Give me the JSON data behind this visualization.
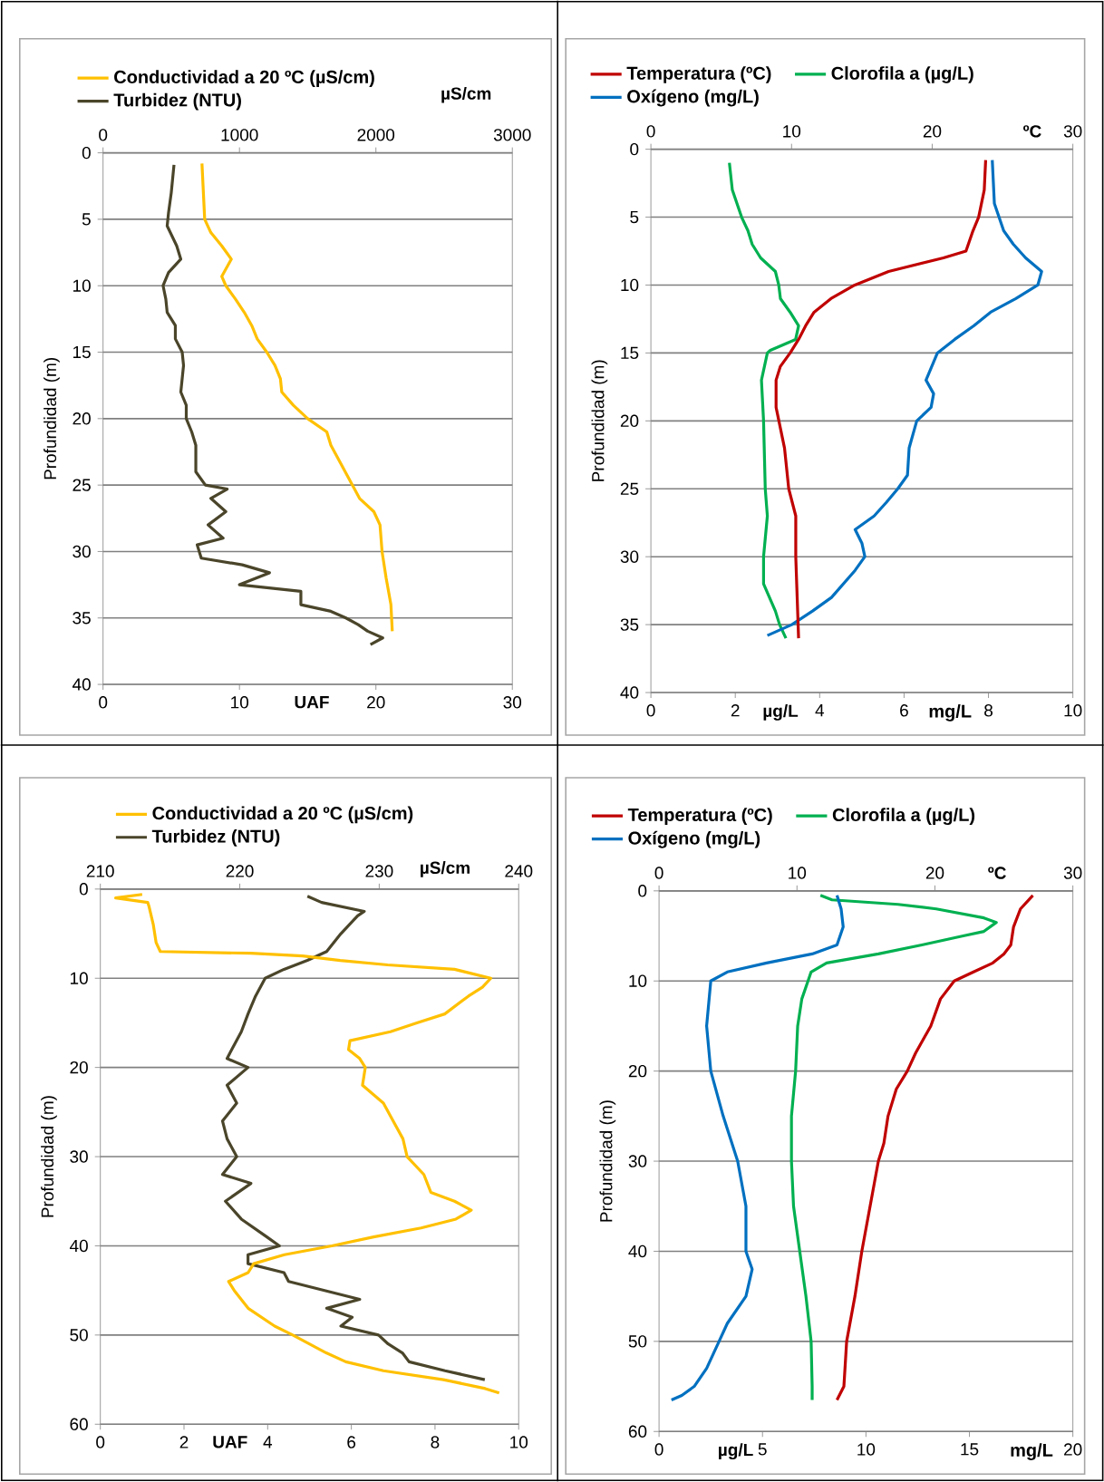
{
  "chart_data": [
    {
      "type": "line",
      "xlabel": "UAF",
      "x2label": "µS/cm",
      "ylabel": "Profundidad (m)",
      "xlim": [
        0,
        30
      ],
      "xticks": [
        0,
        10,
        20,
        30
      ],
      "x2lim": [
        0,
        3000
      ],
      "x2ticks": [
        0,
        1000,
        2000,
        3000
      ],
      "ylim": [
        40,
        0
      ],
      "yticks": [
        0,
        5,
        10,
        15,
        20,
        25,
        30,
        35,
        40
      ],
      "grid": "y",
      "legend": "top",
      "series": [
        {
          "name": "Conductividad  a  20 ºC (µS/cm)",
          "color": "#ffc000",
          "axis": "x2",
          "x": [
            725,
            745,
            790,
            870,
            940,
            870,
            900,
            970,
            1035,
            1090,
            1130,
            1200,
            1260,
            1300,
            1310,
            1395,
            1500,
            1640,
            1670,
            1775,
            1880,
            1985,
            2030,
            2045,
            2075,
            2110,
            2120
          ],
          "values": [
            0.8,
            5,
            6,
            7,
            8,
            9.3,
            10,
            11,
            12,
            13,
            14,
            15,
            16,
            17,
            18,
            19,
            20,
            21,
            22,
            24,
            26,
            27,
            28,
            30,
            32,
            34,
            36
          ]
        },
        {
          "name": "Turbidez (NTU)",
          "color": "#4a452a",
          "x": [
            5.2,
            5.0,
            4.8,
            4.7,
            5.4,
            5.7,
            4.8,
            4.4,
            4.6,
            4.7,
            5.3,
            5.3,
            5.8,
            5.9,
            5.7,
            6.1,
            6.1,
            6.5,
            6.8,
            6.8,
            7.5,
            9.1,
            7.9,
            9.0,
            7.7,
            8.8,
            6.9,
            7.2,
            10.2,
            12.2,
            10.0,
            14.5,
            14.5,
            16.7,
            17.8,
            18.7,
            19.4,
            20.5,
            19.6
          ],
          "values": [
            0.9,
            3,
            4.5,
            5.5,
            7,
            8,
            9,
            10,
            11,
            12,
            13,
            14,
            15,
            16,
            18,
            19,
            20,
            21,
            22,
            24,
            25,
            25.3,
            26,
            27,
            28,
            29,
            29.5,
            30.5,
            31,
            31.6,
            32.5,
            33,
            34,
            34.5,
            35,
            35.5,
            36,
            36.5,
            37
          ]
        }
      ]
    },
    {
      "type": "line",
      "xlabel": "µg/L",
      "x2label": "ºC",
      "ylabel": "Profundidad (m)",
      "xlim": [
        0,
        10
      ],
      "xticks": [
        0,
        2,
        4,
        6,
        8,
        10
      ],
      "x2lim": [
        0,
        30
      ],
      "x2ticks": [
        0,
        10,
        20,
        30
      ],
      "ylim": [
        40,
        0
      ],
      "yticks": [
        0,
        5,
        10,
        15,
        20,
        25,
        30,
        35,
        40
      ],
      "grid": "y",
      "legend": "top",
      "annotations": [
        "mg/L"
      ],
      "series": [
        {
          "name": "Temperatura (ºC)",
          "color": "#c00000",
          "axis": "x2",
          "x": [
            23.8,
            23.7,
            23.3,
            22.9,
            22.4,
            20.8,
            16.9,
            14.5,
            12.8,
            11.6,
            11.0,
            10.5,
            9.9,
            9.2,
            8.9,
            8.9,
            9.5,
            9.8,
            10.3,
            10.3,
            10.4,
            10.5
          ],
          "values": [
            0.8,
            3,
            5,
            6,
            7.5,
            8,
            9,
            10,
            11,
            12,
            13,
            14,
            15,
            16,
            17,
            19,
            22,
            25,
            27,
            30,
            33,
            36
          ]
        },
        {
          "name": "Clorofila a (µg/L)",
          "color": "#00b050",
          "x": [
            1.86,
            1.93,
            2.15,
            2.3,
            2.4,
            2.6,
            2.95,
            3.03,
            3.07,
            3.3,
            3.5,
            3.43,
            2.83,
            2.76,
            2.62,
            2.67,
            2.71,
            2.76,
            2.67,
            2.67,
            2.95,
            3.05,
            3.2
          ],
          "values": [
            1,
            3,
            5,
            6,
            7,
            8,
            9,
            10,
            11,
            12,
            13,
            14,
            14.8,
            15,
            17,
            20,
            25,
            27,
            30,
            32,
            34,
            35,
            36
          ]
        },
        {
          "name": "Oxígeno (mg/L)",
          "color": "#0070c0",
          "x": [
            8.09,
            8.14,
            8.36,
            8.59,
            8.88,
            9.26,
            9.17,
            8.65,
            8.05,
            7.65,
            7.2,
            6.79,
            6.52,
            6.7,
            6.64,
            6.3,
            6.12,
            6.08,
            5.85,
            5.58,
            5.29,
            4.84,
            5.0,
            5.07,
            4.84,
            4.28,
            3.83,
            3.34,
            2.76
          ],
          "values": [
            0.8,
            4,
            6,
            7,
            8,
            9,
            10,
            11,
            12,
            13,
            14,
            15,
            17,
            18,
            19,
            20,
            22,
            24,
            25,
            26,
            27,
            28,
            29,
            30,
            31,
            33,
            34,
            35,
            35.8
          ]
        }
      ]
    },
    {
      "type": "line",
      "xlabel": "UAF",
      "x2label": "µS/cm",
      "ylabel": "Profundidad (m)",
      "xlim": [
        0,
        10
      ],
      "xticks": [
        0,
        2,
        4,
        6,
        8,
        10
      ],
      "x2lim": [
        210,
        240
      ],
      "x2ticks": [
        210,
        220,
        230,
        240
      ],
      "ylim": [
        60,
        0
      ],
      "yticks": [
        0,
        10,
        20,
        30,
        40,
        50,
        60
      ],
      "grid": "y",
      "legend": "top",
      "series": [
        {
          "name": "Conductividad  a  20 ºC (µS/cm)",
          "color": "#ffc000",
          "axis": "x2",
          "x": [
            213.0,
            211.1,
            213.4,
            213.5,
            213.8,
            214.0,
            214.3,
            220.8,
            224.5,
            227.2,
            230.6,
            235.4,
            238.0,
            237.4,
            236.4,
            234.7,
            232.7,
            230.8,
            227.9,
            227.8,
            228.6,
            229.0,
            228.8,
            230.3,
            231.0,
            231.7,
            232.0,
            233.2,
            233.7,
            235.4,
            236.6,
            235.5,
            233.0,
            229.6,
            226.6,
            223.2,
            221.0,
            220.6,
            219.2,
            219.6,
            220.6,
            222.5,
            223.8,
            226.2,
            227.6,
            230.3,
            234.6,
            237.6,
            238.6
          ],
          "values": [
            0.6,
            1,
            1.5,
            2,
            4,
            6,
            7,
            7.2,
            7.5,
            8,
            8.5,
            9,
            10,
            11,
            12,
            14,
            15,
            16,
            17,
            18,
            19,
            20,
            22,
            24,
            26,
            28,
            30,
            32,
            34,
            35,
            36,
            37,
            38,
            39,
            40,
            41,
            42,
            43,
            44,
            45,
            47,
            49,
            50,
            52,
            53,
            54,
            55,
            56,
            56.5
          ]
        },
        {
          "name": "Turbidez (NTU)",
          "color": "#4a452a",
          "x": [
            4.95,
            5.29,
            6.31,
            6.15,
            5.75,
            5.41,
            4.95,
            4.39,
            3.94,
            3.71,
            3.53,
            3.37,
            3.14,
            3.03,
            3.53,
            3.03,
            3.26,
            2.92,
            3.03,
            3.26,
            2.92,
            3.6,
            2.99,
            3.37,
            3.98,
            4.28,
            3.53,
            3.53,
            4.39,
            4.5,
            6.2,
            5.41,
            6.02,
            5.75,
            6.65,
            6.88,
            7.22,
            7.38,
            8.24,
            9.19
          ],
          "values": [
            0.8,
            1.5,
            2.5,
            3,
            5,
            7,
            8,
            9,
            10,
            12,
            14,
            16,
            18,
            19,
            20,
            22,
            24,
            26,
            28,
            30,
            32,
            33,
            35,
            37,
            39,
            40,
            41,
            42,
            43,
            44,
            46,
            47,
            48,
            49,
            50,
            51,
            52,
            53,
            54,
            55
          ]
        }
      ]
    },
    {
      "type": "line",
      "xlabel": "µg/L",
      "x2label": "ºC",
      "ylabel": "Profundidad (m)",
      "xlim": [
        0,
        20
      ],
      "xticks": [
        0,
        5,
        10,
        15,
        20
      ],
      "x2lim": [
        0,
        30
      ],
      "x2ticks": [
        0,
        10,
        20,
        30
      ],
      "ylim": [
        60,
        0
      ],
      "yticks": [
        0,
        10,
        20,
        30,
        40,
        50,
        60
      ],
      "grid": "y",
      "legend": "top",
      "annotations": [
        "mg/L"
      ],
      "series": [
        {
          "name": "Temperatura (ºC)",
          "color": "#c00000",
          "axis": "x2",
          "x": [
            27.1,
            26.2,
            25.7,
            25.5,
            25.0,
            24.2,
            22.8,
            21.4,
            20.4,
            19.7,
            18.6,
            18.0,
            17.2,
            16.6,
            16.3,
            15.9,
            15.3,
            14.7,
            14.2,
            13.6,
            13.4,
            12.9
          ],
          "values": [
            0.5,
            2,
            4,
            6,
            7,
            8,
            9,
            10,
            12,
            15,
            18,
            20,
            22,
            25,
            28,
            30,
            35,
            40,
            45,
            50,
            55,
            56.5
          ]
        },
        {
          "name": "Clorofila a (µg/L)",
          "color": "#00b050",
          "x": [
            7.8,
            8.36,
            11.55,
            13.4,
            15.7,
            16.3,
            15.7,
            14.7,
            12.7,
            10.6,
            8.1,
            7.35,
            7.2,
            6.9,
            6.7,
            6.6,
            6.4,
            6.4,
            6.5,
            6.8,
            7.1,
            7.35,
            7.4,
            7.4
          ],
          "values": [
            0.5,
            1,
            1.5,
            2,
            3,
            3.5,
            4.5,
            5,
            6,
            7,
            8,
            9,
            10,
            12,
            15,
            20,
            25,
            30,
            35,
            40,
            45,
            50,
            55,
            56.5
          ]
        },
        {
          "name": "Oxígeno (mg/L)",
          "color": "#0070c0",
          "x": [
            8.6,
            8.8,
            8.9,
            8.6,
            7.4,
            5.2,
            3.3,
            2.5,
            2.3,
            2.5,
            3.1,
            3.8,
            4.2,
            4.2,
            4.5,
            4.2,
            3.3,
            2.9,
            2.3,
            1.7,
            1.1,
            0.6
          ],
          "values": [
            0.5,
            2,
            4,
            6,
            7,
            8,
            9,
            10,
            15,
            20,
            25,
            30,
            35,
            40,
            42,
            45,
            48,
            50,
            53,
            55,
            56,
            56.5
          ]
        }
      ]
    }
  ]
}
